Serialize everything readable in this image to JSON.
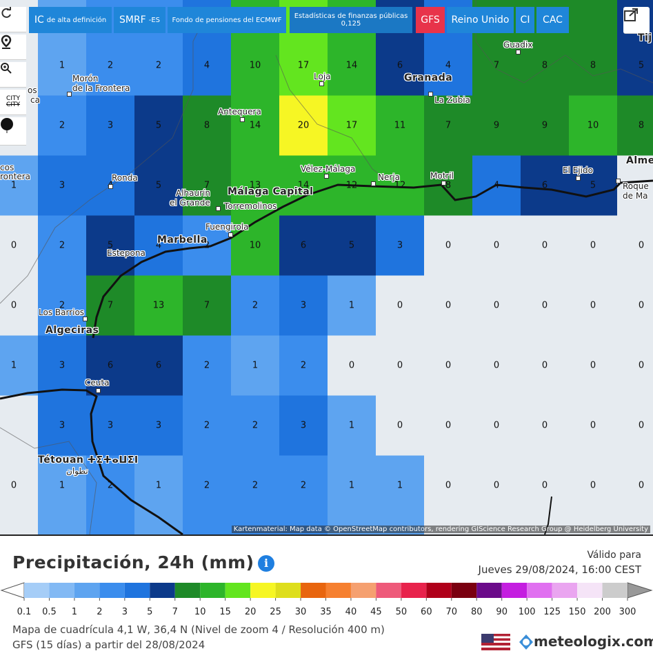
{
  "toolbar": {
    "buttons": [
      {
        "main": "IC",
        "sub": "de alta definición"
      },
      {
        "main": "SMRF",
        "sub": "-ES"
      },
      {
        "main": "Fondo de pensiones del ECMWF"
      },
      {
        "main": "Estadísticas de finanzas públicas",
        "sub": "0,125"
      },
      {
        "main": "GFS"
      },
      {
        "main": "Reino Unido"
      },
      {
        "main": "CI"
      },
      {
        "main": "CAC"
      }
    ]
  },
  "sidebar": {
    "city_label": "CITY",
    "city_label_struck": "CITY"
  },
  "map": {
    "grid": {
      "rows": [
        [
          null,
          1,
          2,
          2,
          4,
          10,
          17,
          14,
          6,
          4,
          7,
          8,
          8,
          5
        ],
        [
          null,
          2,
          3,
          5,
          8,
          14,
          20,
          17,
          11,
          7,
          9,
          9,
          10,
          8
        ],
        [
          1,
          3,
          4,
          5,
          7,
          13,
          14,
          12,
          12,
          8,
          4,
          6,
          5,
          null
        ],
        [
          0,
          2,
          5,
          4,
          2,
          10,
          6,
          5,
          3,
          0,
          0,
          0,
          0,
          0
        ],
        [
          0,
          2,
          7,
          13,
          7,
          2,
          3,
          1,
          0,
          0,
          0,
          0,
          0,
          0
        ],
        [
          1,
          3,
          6,
          6,
          2,
          1,
          2,
          0,
          0,
          0,
          0,
          0,
          0,
          0
        ],
        [
          null,
          3,
          3,
          3,
          2,
          2,
          3,
          1,
          0,
          0,
          0,
          0,
          0,
          0
        ],
        [
          0,
          1,
          2,
          1,
          2,
          2,
          2,
          1,
          1,
          0,
          0,
          0,
          0,
          0
        ]
      ]
    },
    "below_min_color": "#e6ebf0",
    "places": [
      {
        "lines": [
          "Morón",
          "de la Frontera"
        ]
      },
      {
        "lines": [
          "Antequera"
        ]
      },
      {
        "lines": [
          "Loja"
        ]
      },
      {
        "lines": [
          "Granada"
        ]
      },
      {
        "lines": [
          "La Zubia"
        ]
      },
      {
        "lines": [
          "Guadix"
        ]
      },
      {
        "lines": [
          "Vélez-Málaga"
        ]
      },
      {
        "lines": [
          "Nerja"
        ]
      },
      {
        "lines": [
          "Motril"
        ]
      },
      {
        "lines": [
          "El Ejido"
        ]
      },
      {
        "lines": [
          "Alme"
        ]
      },
      {
        "lines": [
          "Roque",
          "de Ma"
        ]
      },
      {
        "lines": [
          "Ronda"
        ]
      },
      {
        "lines": [
          "Alhaurín",
          "el Grande"
        ]
      },
      {
        "lines": [
          "Málaga Capital"
        ]
      },
      {
        "lines": [
          "Torremolinos"
        ]
      },
      {
        "lines": [
          "Fuengirola"
        ]
      },
      {
        "lines": [
          "Marbella"
        ]
      },
      {
        "lines": [
          "Estepona"
        ]
      },
      {
        "lines": [
          "Los Barrios"
        ]
      },
      {
        "lines": [
          "Algeciras"
        ]
      },
      {
        "lines": [
          "Ceuta"
        ]
      },
      {
        "lines": [
          "Tétouan ⵜⵉⵜⴰⵡⵉⵏ",
          "تطوان"
        ]
      },
      {
        "lines": [
          "cos",
          "rontera"
        ]
      },
      {
        "lines": [
          "Tij"
        ]
      },
      {
        "lines": [
          "os",
          "ca"
        ]
      }
    ],
    "attribution": "Kartenmaterial: Map data © OpenStreetMap contributors, rendering GIScience Research Group @ Heidelberg University"
  },
  "legend": {
    "title": "Precipitación, 24h (mm)",
    "valid_label": "Válido para",
    "valid_time": "Jueves 29/08/2024, 16:00 CEST",
    "ticks": [
      0.1,
      0.5,
      1,
      2,
      3,
      5,
      7,
      10,
      15,
      20,
      25,
      30,
      35,
      40,
      45,
      50,
      60,
      70,
      80,
      90,
      100,
      125,
      150,
      200,
      300
    ],
    "colors": [
      "#a5cdf7",
      "#82b9f4",
      "#5ea4f0",
      "#3b8ded",
      "#1f74de",
      "#0c3a8a",
      "#1e8a28",
      "#2db52a",
      "#63e51f",
      "#f6f624",
      "#dede1c",
      "#e8650e",
      "#f68030",
      "#f5a070",
      "#ee5a7a",
      "#e8234c",
      "#b0001a",
      "#7a0010",
      "#6b0a8a",
      "#c41ee0",
      "#e070f0",
      "#eaa5f0",
      "#f5e4f7",
      "#cccccc"
    ],
    "grid_info": "Mapa de cuadrícula 4,1 W, 36,4 N (Nivel de zoom 4 / Resolución 400 m)",
    "model_info": "GFS (15 días) a partir del 28/08/2024",
    "brand": "meteologix.com"
  }
}
